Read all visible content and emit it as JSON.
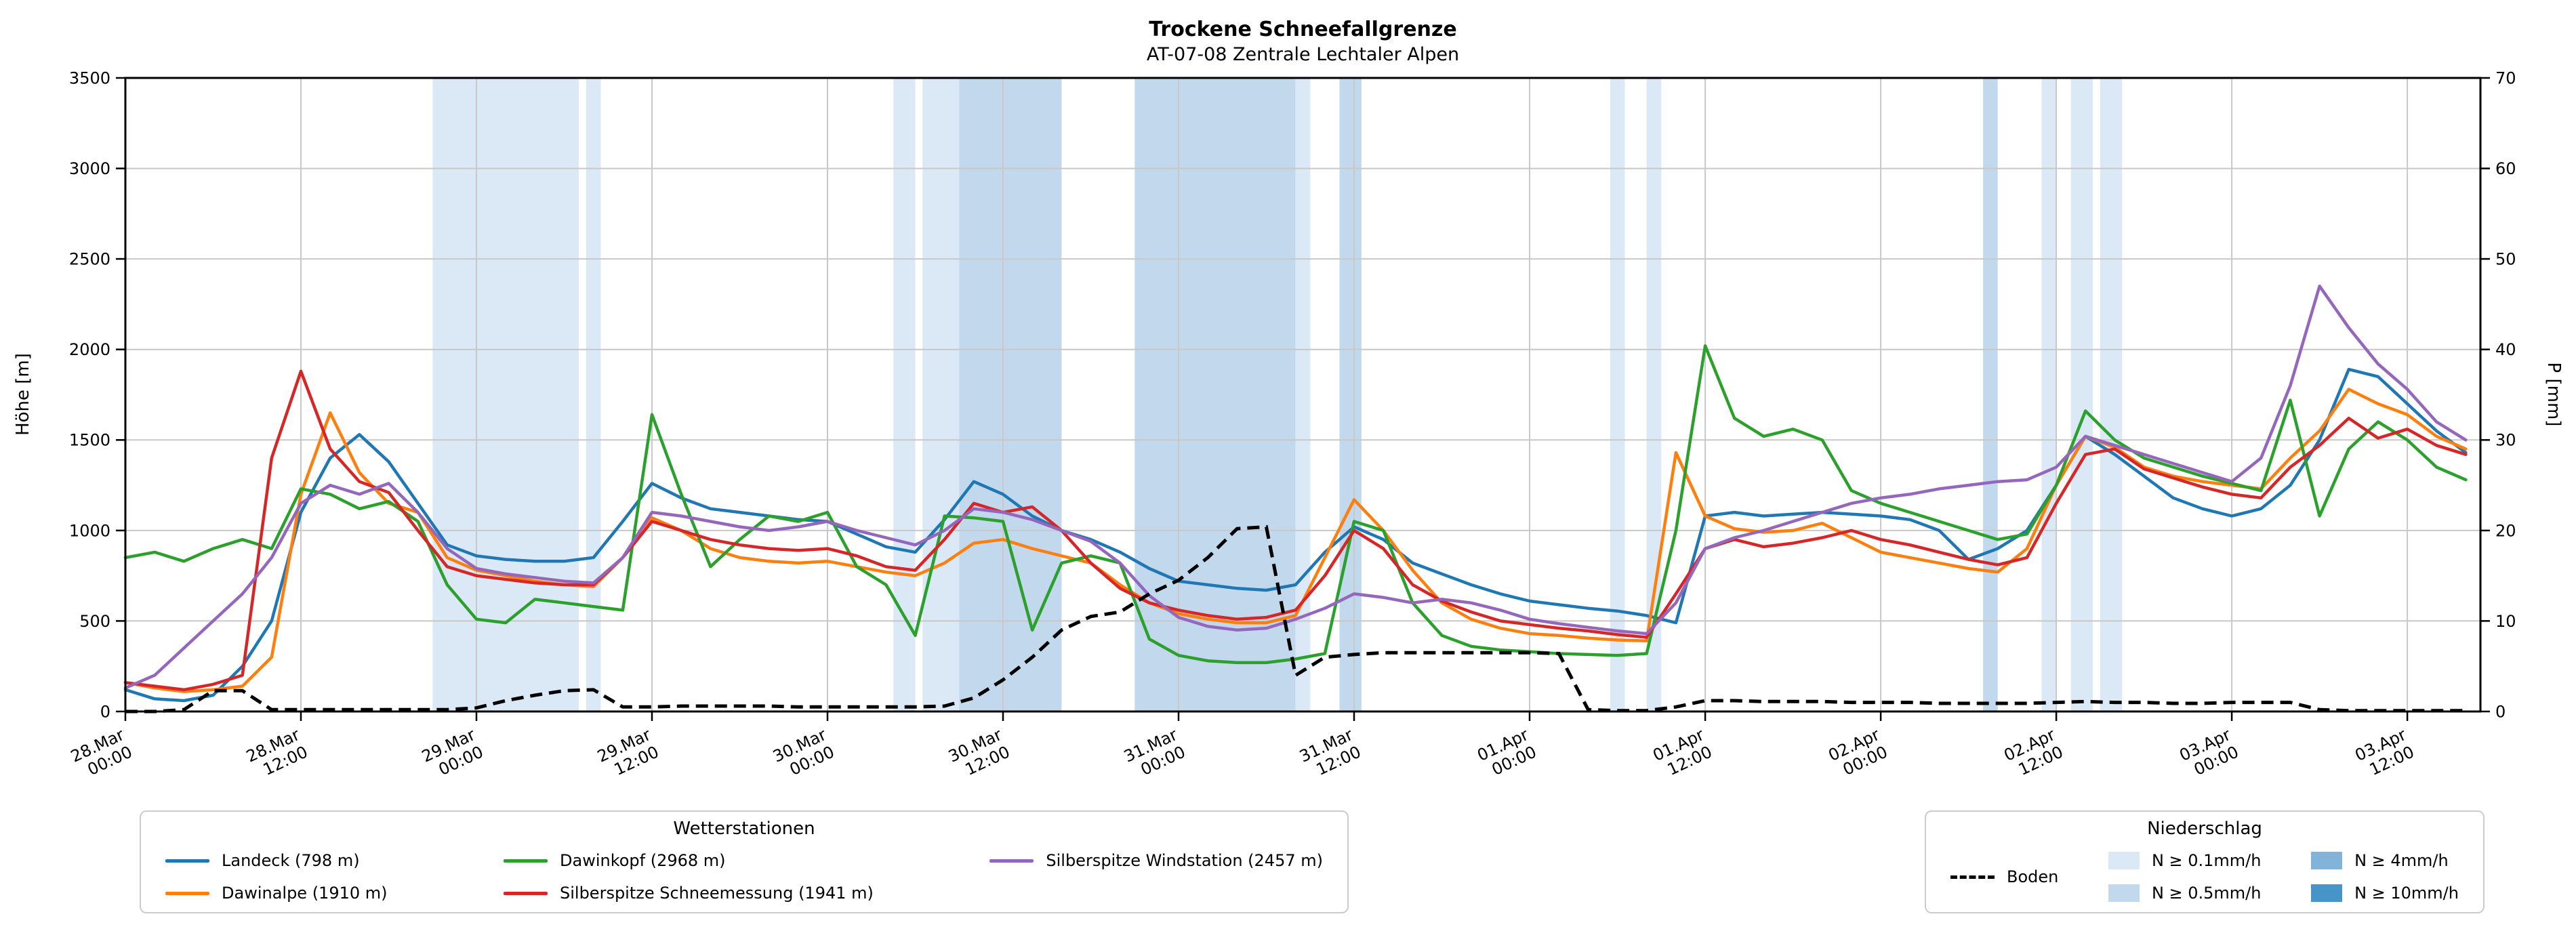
{
  "header": {
    "title": "Trockene Schneefallgrenze",
    "subtitle": "AT-07-08 Zentrale Lechtaler Alpen"
  },
  "legend_stations": {
    "title": "Wetterstationen"
  },
  "legend_precip": {
    "title": "Niederschlag",
    "items": [
      {
        "key": "lvl01",
        "label": "N ≥ 0.1mm/h"
      },
      {
        "key": "lvl05",
        "label": "N ≥ 0.5mm/h"
      },
      {
        "key": "lvl4",
        "label": "N ≥ 4mm/h"
      },
      {
        "key": "lvl10",
        "label": "N ≥ 10mm/h"
      }
    ]
  },
  "chart_data": {
    "type": "line",
    "title": "Trockene Schneefallgrenze",
    "subtitle": "AT-07-08 Zentrale Lechtaler Alpen",
    "ylabel_left": "Höhe [m]",
    "ylabel_right": "P [mm]",
    "y_left_max": 3500,
    "y_right_max": 70,
    "y_left_ticks": [
      0,
      500,
      1000,
      1500,
      2000,
      2500,
      3000,
      3500
    ],
    "y_right_ticks": [
      0,
      10,
      20,
      30,
      40,
      50,
      60,
      70
    ],
    "x_min": 0,
    "x_max": 161,
    "x_unit": "hours since 28.Mar 00:00",
    "grid": true,
    "x_ticks": [
      {
        "hour": 0,
        "date": "28.Mar",
        "time": "00:00"
      },
      {
        "hour": 12,
        "date": "28.Mar",
        "time": "12:00"
      },
      {
        "hour": 24,
        "date": "29.Mar",
        "time": "00:00"
      },
      {
        "hour": 36,
        "date": "29.Mar",
        "time": "12:00"
      },
      {
        "hour": 48,
        "date": "30.Mar",
        "time": "00:00"
      },
      {
        "hour": 60,
        "date": "30.Mar",
        "time": "12:00"
      },
      {
        "hour": 72,
        "date": "31.Mar",
        "time": "00:00"
      },
      {
        "hour": 84,
        "date": "31.Mar",
        "time": "12:00"
      },
      {
        "hour": 96,
        "date": "01.Apr",
        "time": "00:00"
      },
      {
        "hour": 108,
        "date": "01.Apr",
        "time": "12:00"
      },
      {
        "hour": 120,
        "date": "02.Apr",
        "time": "00:00"
      },
      {
        "hour": 132,
        "date": "02.Apr",
        "time": "12:00"
      },
      {
        "hour": 144,
        "date": "03.Apr",
        "time": "00:00"
      },
      {
        "hour": 156,
        "date": "03.Apr",
        "time": "12:00"
      }
    ],
    "hours": [
      0,
      2,
      4,
      6,
      8,
      10,
      12,
      14,
      16,
      18,
      20,
      22,
      24,
      26,
      28,
      30,
      32,
      34,
      36,
      38,
      40,
      42,
      44,
      46,
      48,
      50,
      52,
      54,
      56,
      58,
      60,
      62,
      64,
      66,
      68,
      70,
      72,
      74,
      76,
      78,
      80,
      82,
      84,
      86,
      88,
      90,
      92,
      94,
      96,
      98,
      100,
      102,
      104,
      106,
      108,
      110,
      112,
      114,
      116,
      118,
      120,
      122,
      124,
      126,
      128,
      130,
      132,
      134,
      136,
      138,
      140,
      142,
      144,
      146,
      148,
      150,
      152,
      154,
      156,
      158,
      160
    ],
    "series": [
      {
        "id": "landeck",
        "label": "Landeck (798 m)",
        "color": "#1f77b4",
        "values": [
          120,
          70,
          60,
          90,
          250,
          500,
          1100,
          1400,
          1530,
          1380,
          1150,
          920,
          860,
          840,
          830,
          830,
          850,
          1050,
          1260,
          1180,
          1120,
          1100,
          1080,
          1060,
          1050,
          980,
          910,
          880,
          1060,
          1270,
          1200,
          1080,
          1000,
          950,
          880,
          790,
          720,
          700,
          680,
          670,
          700,
          880,
          1020,
          950,
          820,
          760,
          700,
          650,
          610,
          590,
          570,
          555,
          530,
          490,
          1080,
          1100,
          1080,
          1090,
          1100,
          1090,
          1080,
          1060,
          1000,
          840,
          900,
          1000,
          1250,
          1520,
          1420,
          1300,
          1180,
          1120,
          1080,
          1120,
          1250,
          1500,
          1890,
          1850,
          1700,
          1550,
          1430
        ]
      },
      {
        "id": "dawinalpe",
        "label": "Dawinalpe (1910 m)",
        "color": "#ff7f0e",
        "values": [
          160,
          130,
          110,
          120,
          140,
          300,
          1200,
          1650,
          1320,
          1150,
          1100,
          850,
          780,
          750,
          720,
          700,
          690,
          850,
          1070,
          1000,
          900,
          850,
          830,
          820,
          830,
          800,
          770,
          750,
          820,
          930,
          950,
          900,
          860,
          820,
          700,
          600,
          540,
          510,
          490,
          490,
          530,
          850,
          1170,
          1000,
          780,
          600,
          510,
          460,
          430,
          420,
          405,
          395,
          390,
          1430,
          1080,
          1010,
          990,
          1000,
          1040,
          960,
          880,
          850,
          820,
          790,
          770,
          900,
          1250,
          1520,
          1460,
          1350,
          1300,
          1270,
          1250,
          1230,
          1400,
          1550,
          1780,
          1700,
          1640,
          1520,
          1450
        ]
      },
      {
        "id": "dawinkopf",
        "label": "Dawinkopf (2968 m)",
        "color": "#2ca02c",
        "values": [
          850,
          880,
          830,
          900,
          950,
          900,
          1230,
          1200,
          1120,
          1160,
          1050,
          700,
          510,
          490,
          620,
          600,
          580,
          560,
          1640,
          1200,
          800,
          950,
          1080,
          1050,
          1100,
          800,
          700,
          420,
          1080,
          1070,
          1050,
          450,
          820,
          860,
          820,
          400,
          310,
          280,
          270,
          270,
          290,
          320,
          1050,
          1000,
          600,
          420,
          360,
          340,
          330,
          320,
          315,
          310,
          320,
          1000,
          2020,
          1620,
          1520,
          1560,
          1500,
          1220,
          1150,
          1100,
          1050,
          1000,
          950,
          980,
          1250,
          1660,
          1500,
          1400,
          1350,
          1300,
          1260,
          1220,
          1720,
          1080,
          1450,
          1600,
          1500,
          1350,
          1280
        ]
      },
      {
        "id": "silberspitze-schneemessung",
        "label": "Silberspitze Schneemessung (1941 m)",
        "color": "#d62728",
        "values": [
          160,
          140,
          120,
          150,
          200,
          1400,
          1880,
          1450,
          1270,
          1210,
          1000,
          800,
          750,
          730,
          710,
          700,
          700,
          850,
          1050,
          1000,
          950,
          920,
          900,
          890,
          900,
          860,
          800,
          780,
          950,
          1150,
          1100,
          1130,
          1000,
          820,
          680,
          600,
          560,
          530,
          510,
          520,
          560,
          750,
          1000,
          900,
          700,
          610,
          550,
          500,
          480,
          460,
          445,
          425,
          410,
          650,
          900,
          950,
          910,
          930,
          960,
          1000,
          950,
          920,
          880,
          840,
          810,
          850,
          1150,
          1420,
          1450,
          1340,
          1290,
          1240,
          1200,
          1180,
          1350,
          1470,
          1620,
          1510,
          1560,
          1470,
          1420
        ]
      },
      {
        "id": "silberspitze-windstation",
        "label": "Silberspitze Windstation (2457 m)",
        "color": "#9467bd",
        "values": [
          130,
          200,
          350,
          500,
          650,
          850,
          1150,
          1250,
          1200,
          1260,
          1100,
          900,
          790,
          760,
          740,
          720,
          710,
          850,
          1100,
          1080,
          1050,
          1020,
          1000,
          1020,
          1050,
          1000,
          960,
          920,
          1000,
          1120,
          1100,
          1060,
          1000,
          940,
          820,
          640,
          520,
          470,
          450,
          460,
          510,
          570,
          650,
          630,
          600,
          620,
          600,
          560,
          510,
          485,
          465,
          445,
          430,
          600,
          900,
          960,
          1000,
          1050,
          1100,
          1150,
          1180,
          1200,
          1230,
          1250,
          1270,
          1280,
          1350,
          1520,
          1470,
          1420,
          1370,
          1320,
          1270,
          1400,
          1800,
          2350,
          2120,
          1920,
          1780,
          1600,
          1500
        ]
      }
    ],
    "boden": {
      "id": "boden",
      "label": "Boden",
      "color": "#000000",
      "axis": "right",
      "style": "dashed",
      "values": [
        0,
        0,
        0.2,
        2.3,
        2.3,
        0.2,
        0.2,
        0.2,
        0.2,
        0.2,
        0.2,
        0.2,
        0.4,
        1.2,
        1.8,
        2.3,
        2.4,
        0.5,
        0.5,
        0.6,
        0.6,
        0.6,
        0.6,
        0.5,
        0.5,
        0.5,
        0.5,
        0.5,
        0.6,
        1.5,
        3.5,
        6,
        9,
        10.5,
        11,
        13,
        14.5,
        17,
        20.2,
        20.4,
        4,
        6,
        6.3,
        6.5,
        6.5,
        6.5,
        6.5,
        6.5,
        6.5,
        6.4,
        0.2,
        0.1,
        0.1,
        0.5,
        1.2,
        1.2,
        1.1,
        1.1,
        1.1,
        1,
        1,
        1,
        0.9,
        0.9,
        0.9,
        0.9,
        1,
        1.1,
        1,
        1,
        0.9,
        0.9,
        1,
        1,
        1,
        0.2,
        0.1,
        0.1,
        0.1,
        0.1,
        0.1
      ]
    },
    "band_colors": {
      "lvl01": "#dbe9f6",
      "lvl05": "#c1d8ed",
      "lvl4": "#82b4da",
      "lvl10": "#4794c8"
    },
    "precip_bands": [
      {
        "start": 21,
        "end": 31,
        "level": "lvl01"
      },
      {
        "start": 31.5,
        "end": 32.5,
        "level": "lvl01"
      },
      {
        "start": 52.5,
        "end": 54,
        "level": "lvl01"
      },
      {
        "start": 54.5,
        "end": 57,
        "level": "lvl01"
      },
      {
        "start": 57,
        "end": 64,
        "level": "lvl05"
      },
      {
        "start": 69,
        "end": 80,
        "level": "lvl05"
      },
      {
        "start": 80,
        "end": 81,
        "level": "lvl01"
      },
      {
        "start": 83,
        "end": 84.5,
        "level": "lvl05"
      },
      {
        "start": 101.5,
        "end": 102.5,
        "level": "lvl01"
      },
      {
        "start": 104,
        "end": 105,
        "level": "lvl01"
      },
      {
        "start": 127,
        "end": 128,
        "level": "lvl05"
      },
      {
        "start": 131,
        "end": 132,
        "level": "lvl01"
      },
      {
        "start": 133,
        "end": 134.5,
        "level": "lvl01"
      },
      {
        "start": 135,
        "end": 136.5,
        "level": "lvl01"
      }
    ]
  }
}
